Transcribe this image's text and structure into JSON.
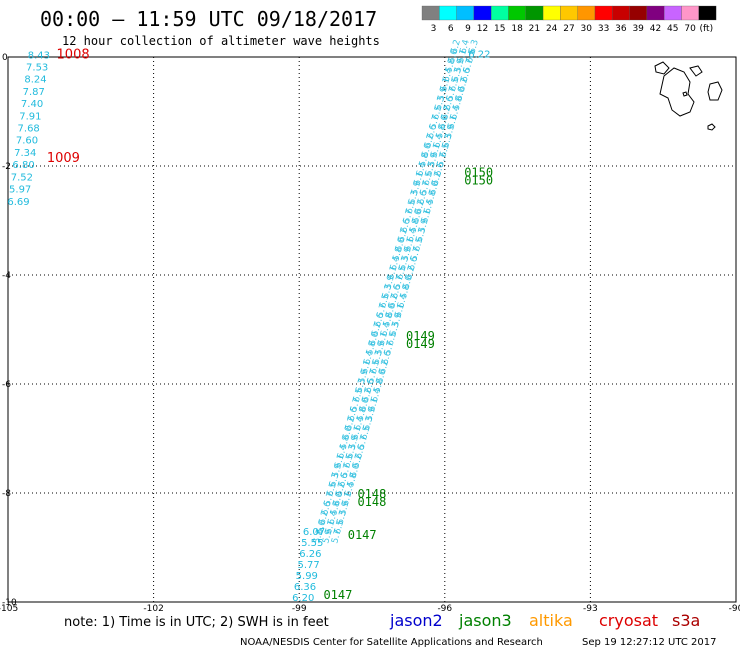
{
  "header": {
    "title": "00:00 – 11:59 UTC 09/18/2017",
    "subtitle": "12 hour collection of altimeter wave heights"
  },
  "legend_scale": {
    "labels": [
      "3",
      "6",
      "9",
      "12",
      "15",
      "18",
      "21",
      "24",
      "27",
      "30",
      "33",
      "36",
      "39",
      "42",
      "45",
      "70",
      "(ft)"
    ],
    "colors": [
      "#808080",
      "#00ffff",
      "#00bfff",
      "#0000ff",
      "#00ffa0",
      "#00c800",
      "#009600",
      "#ffff00",
      "#ffc800",
      "#ff9600",
      "#ff0000",
      "#c80000",
      "#960000",
      "#800080",
      "#c864ff",
      "#ff96c8",
      "#000000"
    ]
  },
  "footer": {
    "note": "note: 1) Time is in UTC; 2) SWH is in feet",
    "missions": [
      {
        "name": "jason2",
        "color": "#0000cc"
      },
      {
        "name": "jason3",
        "color": "#008000"
      },
      {
        "name": "altika",
        "color": "#ff9900"
      },
      {
        "name": "cryosat",
        "color": "#dd0000"
      },
      {
        "name": "s3a",
        "color": "#aa0000"
      }
    ],
    "credit": "NOAA/NESDIS Center for Satellite Applications and Research",
    "timestamp": "Sep 19 12:27:12 UTC 2017"
  },
  "chart_data": {
    "type": "scatter",
    "xlim": [
      -105,
      -90
    ],
    "ylim": [
      -10,
      0
    ],
    "x_ticks": [
      "-105",
      "-102",
      "-99",
      "-96",
      "-93",
      "-90"
    ],
    "y_ticks": [
      "0",
      "-2",
      "-4",
      "-6",
      "-8",
      "-10"
    ],
    "grid": true,
    "colors": {
      "swh": "#22bbdd",
      "jason3": "#008000",
      "red_label": "#dd0000"
    },
    "left_track": {
      "values": [
        "8.43",
        "7.53",
        "8.24",
        "7.87",
        "7.40",
        "7.91",
        "7.68",
        "7.60",
        "7.34",
        "6.80",
        "7.52",
        "5.97",
        "6.69"
      ],
      "lat_start": 0.05,
      "lat_step": 0.224
    },
    "left_red_labels": [
      {
        "text": "1008",
        "lon": -104.0,
        "lat": 0.05
      },
      {
        "text": "1009",
        "lon": -104.2,
        "lat": -1.85
      }
    ],
    "track": {
      "lon_top": -95.6,
      "lon_bottom": -98.7,
      "lat_top": 0.05,
      "lat_bottom": -9.8,
      "top_label": "6.22",
      "bottom_values": [
        "6.07",
        "5.55",
        "6.26",
        "5.77",
        "5.99",
        "6.36",
        "6.20"
      ]
    },
    "time_labels": [
      {
        "text": "0150",
        "lon": -95.6,
        "lat": -2.1
      },
      {
        "text": "0150",
        "lon": -95.6,
        "lat": -2.25
      },
      {
        "text": "0149",
        "lon": -96.8,
        "lat": -5.1
      },
      {
        "text": "0149",
        "lon": -96.8,
        "lat": -5.25
      },
      {
        "text": "0148",
        "lon": -97.8,
        "lat": -8.0
      },
      {
        "text": "0148",
        "lon": -97.8,
        "lat": -8.15
      },
      {
        "text": "0147",
        "lon": -98.0,
        "lat": -8.75
      },
      {
        "text": "0147",
        "lon": -98.5,
        "lat": -9.85
      }
    ]
  }
}
